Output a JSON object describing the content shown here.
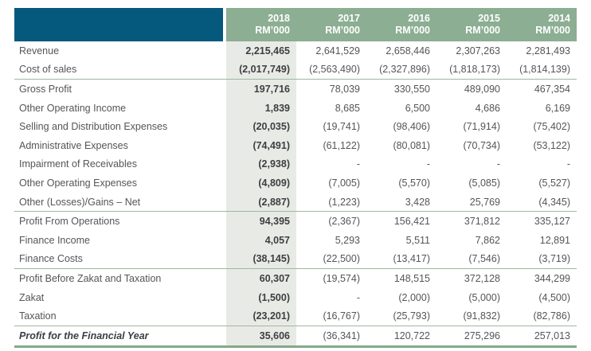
{
  "colors": {
    "header_blue": "#05597c",
    "header_green": "#8cae93",
    "column_2018_shade": "#e8ebe5",
    "separator_green": "#9cb8a1",
    "bottom_rule_green": "#84a98b",
    "text_gray": "#545559",
    "text_bold_dark": "#3d3e42"
  },
  "table": {
    "unit_label": "RM’000",
    "columns": [
      "2018",
      "2017",
      "2016",
      "2015",
      "2014"
    ],
    "rows": [
      {
        "label": "Revenue",
        "values": [
          "2,215,465",
          "2,641,529",
          "2,658,446",
          "2,307,263",
          "2,281,493"
        ],
        "type": "normal"
      },
      {
        "label": "Cost of sales",
        "values": [
          "(2,017,749)",
          "(2,563,490)",
          "(2,327,896)",
          "(1,818,173)",
          "(1,814,139)"
        ],
        "type": "normal"
      },
      {
        "label": "Gross Profit",
        "values": [
          "197,716",
          "78,039",
          "330,550",
          "489,090",
          "467,354"
        ],
        "type": "section-start"
      },
      {
        "label": "Other Operating Income",
        "values": [
          "1,839",
          "8,685",
          "6,500",
          "4,686",
          "6,169"
        ],
        "type": "normal"
      },
      {
        "label": "Selling and Distribution Expenses",
        "values": [
          "(20,035)",
          "(19,741)",
          "(98,406)",
          "(71,914)",
          "(75,402)"
        ],
        "type": "normal"
      },
      {
        "label": "Administrative Expenses",
        "values": [
          "(74,491)",
          "(61,122)",
          "(80,081)",
          "(70,734)",
          "(53,122)"
        ],
        "type": "normal"
      },
      {
        "label": "Impairment of Receivables",
        "values": [
          "(2,938)",
          "-",
          "-",
          "-",
          "-"
        ],
        "type": "normal"
      },
      {
        "label": "Other Operating Expenses",
        "values": [
          "(4,809)",
          "(7,005)",
          "(5,570)",
          "(5,085)",
          "(5,527)"
        ],
        "type": "normal"
      },
      {
        "label": "Other (Losses)/Gains – Net",
        "values": [
          "(2,887)",
          "(1,223)",
          "3,428",
          "25,769",
          "(4,345)"
        ],
        "type": "normal"
      },
      {
        "label": "Profit From Operations",
        "values": [
          "94,395",
          "(2,367)",
          "156,421",
          "371,812",
          "335,127"
        ],
        "type": "section-start"
      },
      {
        "label": "Finance Income",
        "values": [
          "4,057",
          "5,293",
          "5,511",
          "7,862",
          "12,891"
        ],
        "type": "normal"
      },
      {
        "label": "Finance Costs",
        "values": [
          "(38,145)",
          "(22,500)",
          "(13,417)",
          "(7,546)",
          "(3,719)"
        ],
        "type": "normal"
      },
      {
        "label": "Profit Before Zakat and Taxation",
        "values": [
          "60,307",
          "(19,574)",
          "148,515",
          "372,128",
          "344,299"
        ],
        "type": "section-start"
      },
      {
        "label": "Zakat",
        "values": [
          "(1,500)",
          "-",
          "(2,000)",
          "(5,000)",
          "(4,500)"
        ],
        "type": "normal"
      },
      {
        "label": "Taxation",
        "values": [
          "(23,201)",
          "(16,767)",
          "(25,793)",
          "(91,832)",
          "(82,786)"
        ],
        "type": "normal"
      },
      {
        "label": "Profit for the Financial Year",
        "values": [
          "35,606",
          "(36,341)",
          "120,722",
          "275,296",
          "257,013"
        ],
        "type": "total"
      }
    ]
  }
}
